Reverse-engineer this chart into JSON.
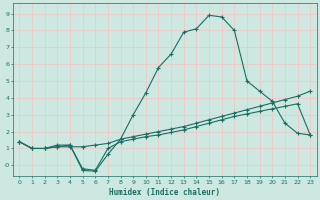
{
  "xlabel": "Humidex (Indice chaleur)",
  "bg_color": "#cce8e0",
  "grid_color": "#f0c8c8",
  "line_color": "#1a6e62",
  "xlim": [
    -0.5,
    23.5
  ],
  "ylim": [
    -0.65,
    9.6
  ],
  "xticks": [
    0,
    1,
    2,
    3,
    4,
    5,
    6,
    7,
    8,
    9,
    10,
    11,
    12,
    13,
    14,
    15,
    16,
    17,
    18,
    19,
    20,
    21,
    22,
    23
  ],
  "yticks": [
    0,
    1,
    2,
    3,
    4,
    5,
    6,
    7,
    8,
    9
  ],
  "line1_x": [
    0,
    1,
    2,
    3,
    4,
    5,
    6,
    7,
    8,
    9,
    10,
    11,
    12,
    13,
    14,
    15,
    16,
    17,
    18,
    19,
    20,
    21,
    22,
    23
  ],
  "line1_y": [
    1.4,
    1.0,
    1.0,
    1.2,
    1.2,
    -0.3,
    -0.35,
    0.65,
    1.55,
    3.0,
    4.3,
    5.8,
    6.6,
    7.9,
    8.1,
    8.9,
    8.8,
    8.0,
    5.0,
    4.4,
    3.8,
    2.5,
    1.9,
    1.8
  ],
  "line2_x": [
    0,
    1,
    2,
    3,
    4,
    5,
    6,
    7,
    8,
    9,
    10,
    11,
    12,
    13,
    14,
    15,
    16,
    17,
    18,
    19,
    20,
    21,
    22,
    23
  ],
  "line2_y": [
    1.4,
    1.0,
    1.0,
    1.1,
    1.1,
    1.1,
    1.2,
    1.3,
    1.55,
    1.7,
    1.85,
    2.0,
    2.15,
    2.3,
    2.5,
    2.7,
    2.9,
    3.1,
    3.3,
    3.5,
    3.7,
    3.9,
    4.1,
    4.4
  ],
  "line3_x": [
    0,
    1,
    2,
    3,
    4,
    5,
    6,
    7,
    8,
    9,
    10,
    11,
    12,
    13,
    14,
    15,
    16,
    17,
    18,
    19,
    20,
    21,
    22,
    23
  ],
  "line3_y": [
    1.4,
    1.0,
    1.0,
    1.1,
    1.2,
    -0.2,
    -0.3,
    1.0,
    1.4,
    1.55,
    1.7,
    1.8,
    1.95,
    2.1,
    2.3,
    2.5,
    2.7,
    2.9,
    3.05,
    3.2,
    3.35,
    3.5,
    3.65,
    1.8
  ]
}
